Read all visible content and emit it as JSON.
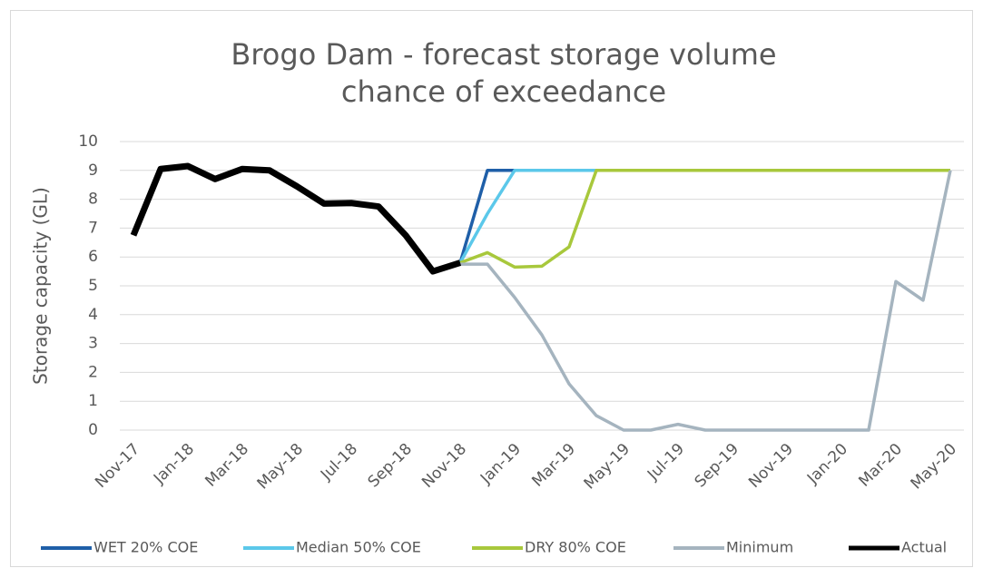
{
  "chart_data": {
    "type": "line",
    "title": [
      "Brogo Dam - forecast storage volume",
      "chance of exceedance"
    ],
    "y_label": "Storage capacity (GL)",
    "categories": [
      "Nov-17",
      null,
      "Jan-18",
      null,
      "Mar-18",
      null,
      "May-18",
      null,
      "Jul-18",
      null,
      "Sep-18",
      null,
      "Nov-18",
      null,
      "Jan-19",
      null,
      "Mar-19",
      null,
      "May-19",
      null,
      "Jul-19",
      null,
      "Sep-19",
      null,
      "Nov-19",
      null,
      "Jan-20",
      null,
      "Mar-20",
      null,
      "May-20"
    ],
    "ylim": [
      0,
      10
    ],
    "yticks": [
      0,
      1,
      2,
      3,
      4,
      5,
      6,
      7,
      8,
      9,
      10
    ],
    "grid": true,
    "legend": "bottom",
    "series": [
      {
        "name": "WET 20% COE",
        "color": "#1f5fa8",
        "width": 3.5,
        "values": [
          null,
          null,
          null,
          null,
          null,
          null,
          null,
          null,
          null,
          null,
          null,
          null,
          5.8,
          9.0,
          9.0,
          9.0,
          9.0,
          9.0,
          9.0,
          9.0,
          9.0,
          9.0,
          9.0,
          9.0,
          9.0,
          9.0,
          9.0,
          9.0,
          9.0,
          9.0,
          9.0
        ]
      },
      {
        "name": "Median 50% COE",
        "color": "#5bc8ea",
        "width": 3.5,
        "values": [
          null,
          null,
          null,
          null,
          null,
          null,
          null,
          null,
          null,
          null,
          null,
          null,
          5.8,
          7.5,
          9.0,
          9.0,
          9.0,
          9.0,
          9.0,
          9.0,
          9.0,
          9.0,
          9.0,
          9.0,
          9.0,
          9.0,
          9.0,
          9.0,
          9.0,
          9.0,
          9.0
        ]
      },
      {
        "name": "DRY 80% COE",
        "color": "#a8c83c",
        "width": 3.5,
        "values": [
          null,
          null,
          null,
          null,
          null,
          null,
          null,
          null,
          null,
          null,
          null,
          null,
          5.8,
          6.15,
          5.65,
          5.68,
          6.35,
          9.0,
          9.0,
          9.0,
          9.0,
          9.0,
          9.0,
          9.0,
          9.0,
          9.0,
          9.0,
          9.0,
          9.0,
          9.0,
          9.0
        ]
      },
      {
        "name": "Minimum",
        "color": "#a5b4bf",
        "width": 3.5,
        "values": [
          null,
          null,
          null,
          null,
          null,
          null,
          null,
          null,
          null,
          null,
          null,
          null,
          5.75,
          5.75,
          4.6,
          3.3,
          1.6,
          0.5,
          0,
          0,
          0.2,
          0,
          0,
          0,
          0,
          0,
          0,
          0,
          5.15,
          4.5,
          9.0
        ]
      },
      {
        "name": "Actual",
        "color": "#000000",
        "width": 7,
        "values": [
          6.75,
          9.05,
          9.15,
          8.7,
          9.05,
          9.0,
          8.45,
          7.85,
          7.87,
          7.75,
          6.75,
          5.5,
          5.8,
          null,
          null,
          null,
          null,
          null,
          null,
          null,
          null,
          null,
          null,
          null,
          null,
          null,
          null,
          null,
          null,
          null,
          null
        ]
      }
    ]
  }
}
